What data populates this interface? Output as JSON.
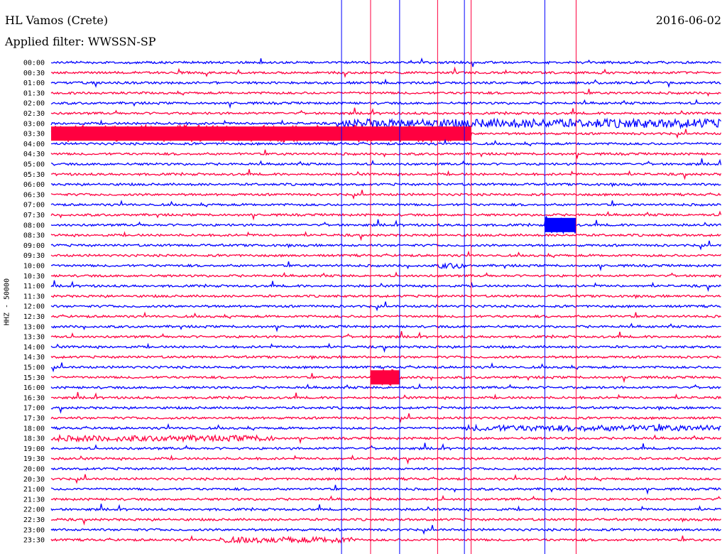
{
  "header": {
    "station": "HL Vamos (Crete)",
    "filter": "Applied filter: WWSSN-SP",
    "date": "2016-06-02",
    "channel": "HHZ - 50000"
  },
  "colors": {
    "even_trace": "#0000ff",
    "odd_trace": "#ff0040"
  },
  "chart_data": {
    "type": "helicorder",
    "row_labels": [
      "00:00",
      "00:30",
      "01:00",
      "01:30",
      "02:00",
      "02:30",
      "03:00",
      "03:30",
      "04:00",
      "04:30",
      "05:00",
      "05:30",
      "06:00",
      "06:30",
      "07:00",
      "07:30",
      "08:00",
      "08:30",
      "09:00",
      "09:30",
      "10:00",
      "10:30",
      "11:00",
      "11:30",
      "12:00",
      "12:30",
      "13:00",
      "13:30",
      "14:00",
      "14:30",
      "15:00",
      "15:30",
      "16:00",
      "16:30",
      "17:00",
      "17:30",
      "18:00",
      "18:30",
      "19:00",
      "19:30",
      "20:00",
      "20:30",
      "21:00",
      "21:30",
      "22:00",
      "22:30",
      "23:00",
      "23:30"
    ],
    "row_minutes": 30,
    "trace_colors": [
      "blue",
      "red"
    ],
    "vertical_markers_min": [
      13.0,
      14.3,
      15.6,
      17.3,
      18.5,
      18.8,
      22.1,
      23.5
    ],
    "events": [
      {
        "row": "03:00",
        "start_min": 13.0,
        "end_min": 30.0,
        "level": "high"
      },
      {
        "row": "03:30",
        "start_min": 0.0,
        "end_min": 18.8,
        "level": "saturated"
      },
      {
        "row": "08:00",
        "start_min": 22.1,
        "end_min": 23.5,
        "level": "saturated"
      },
      {
        "row": "10:00",
        "start_min": 17.3,
        "end_min": 18.5,
        "level": "moderate"
      },
      {
        "row": "15:30",
        "start_min": 14.3,
        "end_min": 15.6,
        "level": "saturated"
      },
      {
        "row": "18:00",
        "start_min": 18.5,
        "end_min": 30.0,
        "level": "moderate"
      },
      {
        "row": "18:30",
        "start_min": 0.0,
        "end_min": 10.0,
        "level": "moderate"
      },
      {
        "row": "23:30",
        "start_min": 7.5,
        "end_min": 13.5,
        "level": "moderate"
      }
    ]
  }
}
